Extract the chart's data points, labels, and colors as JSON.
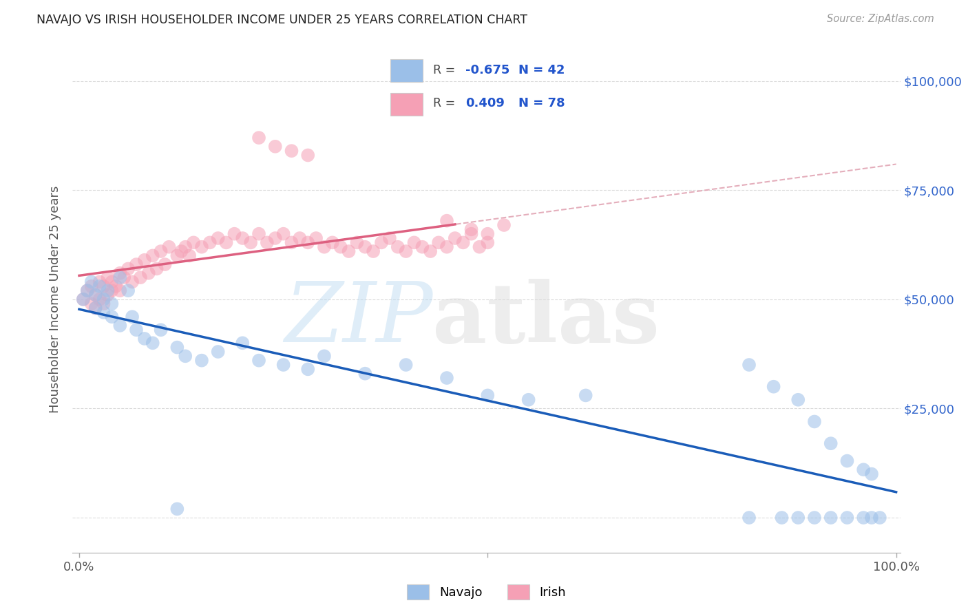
{
  "title": "NAVAJO VS IRISH HOUSEHOLDER INCOME UNDER 25 YEARS CORRELATION CHART",
  "source": "Source: ZipAtlas.com",
  "ylabel": "Householder Income Under 25 years",
  "y_tick_values": [
    0,
    25000,
    50000,
    75000,
    100000
  ],
  "y_tick_labels": [
    "",
    "$25,000",
    "$50,000",
    "$75,000",
    "$100,000"
  ],
  "navajo_color": "#9bbfe8",
  "irish_color": "#f5a0b5",
  "navajo_line_color": "#1a5cb8",
  "irish_line_color": "#dd6080",
  "irish_dash_color": "#e0a0b0",
  "navajo_r": "-0.675",
  "navajo_n": "42",
  "irish_r": "0.409",
  "irish_n": "78",
  "right_tick_color": "#3366cc",
  "background_color": "#ffffff",
  "grid_color": "#cccccc",
  "title_color": "#222222",
  "source_color": "#999999",
  "navajo_x": [
    0.005,
    0.01,
    0.015,
    0.02,
    0.02,
    0.025,
    0.03,
    0.03,
    0.035,
    0.04,
    0.04,
    0.05,
    0.05,
    0.06,
    0.065,
    0.07,
    0.08,
    0.09,
    0.1,
    0.12,
    0.13,
    0.15,
    0.17,
    0.2,
    0.22,
    0.25,
    0.28,
    0.3,
    0.35,
    0.4,
    0.45,
    0.5,
    0.55,
    0.62,
    0.82,
    0.85,
    0.88,
    0.9,
    0.92,
    0.94,
    0.96,
    0.97
  ],
  "navajo_y": [
    50000,
    52000,
    54000,
    51000,
    48000,
    53000,
    50000,
    47000,
    52000,
    49000,
    46000,
    55000,
    44000,
    52000,
    46000,
    43000,
    41000,
    40000,
    43000,
    39000,
    37000,
    36000,
    38000,
    40000,
    36000,
    35000,
    34000,
    37000,
    33000,
    35000,
    32000,
    28000,
    27000,
    28000,
    35000,
    30000,
    27000,
    22000,
    17000,
    13000,
    11000,
    10000
  ],
  "navajo_zero_x": [
    0.12,
    0.82,
    0.86,
    0.88,
    0.9,
    0.92,
    0.94,
    0.96,
    0.97,
    0.98
  ],
  "navajo_zero_y": [
    2000,
    0,
    0,
    0,
    0,
    0,
    0,
    0,
    0,
    0
  ],
  "irish_x": [
    0.005,
    0.01,
    0.015,
    0.015,
    0.02,
    0.02,
    0.025,
    0.025,
    0.03,
    0.03,
    0.035,
    0.035,
    0.04,
    0.04,
    0.045,
    0.05,
    0.05,
    0.055,
    0.06,
    0.065,
    0.07,
    0.075,
    0.08,
    0.085,
    0.09,
    0.095,
    0.1,
    0.105,
    0.11,
    0.12,
    0.125,
    0.13,
    0.135,
    0.14,
    0.15,
    0.16,
    0.17,
    0.18,
    0.19,
    0.2,
    0.21,
    0.22,
    0.23,
    0.24,
    0.25,
    0.26,
    0.27,
    0.28,
    0.29,
    0.3,
    0.31,
    0.32,
    0.33,
    0.34,
    0.35,
    0.36,
    0.37,
    0.38,
    0.39,
    0.4,
    0.41,
    0.42,
    0.43,
    0.44,
    0.45,
    0.46,
    0.47,
    0.48,
    0.49,
    0.5,
    0.22,
    0.24,
    0.26,
    0.28,
    0.45,
    0.48,
    0.5,
    0.52
  ],
  "irish_y": [
    50000,
    52000,
    49000,
    53000,
    51000,
    48000,
    54000,
    50000,
    53000,
    49000,
    55000,
    51000,
    54000,
    52000,
    53000,
    56000,
    52000,
    55000,
    57000,
    54000,
    58000,
    55000,
    59000,
    56000,
    60000,
    57000,
    61000,
    58000,
    62000,
    60000,
    61000,
    62000,
    60000,
    63000,
    62000,
    63000,
    64000,
    63000,
    65000,
    64000,
    63000,
    65000,
    63000,
    64000,
    65000,
    63000,
    64000,
    63000,
    64000,
    62000,
    63000,
    62000,
    61000,
    63000,
    62000,
    61000,
    63000,
    64000,
    62000,
    61000,
    63000,
    62000,
    61000,
    63000,
    62000,
    64000,
    63000,
    65000,
    62000,
    63000,
    87000,
    85000,
    84000,
    83000,
    68000,
    66000,
    65000,
    67000
  ]
}
